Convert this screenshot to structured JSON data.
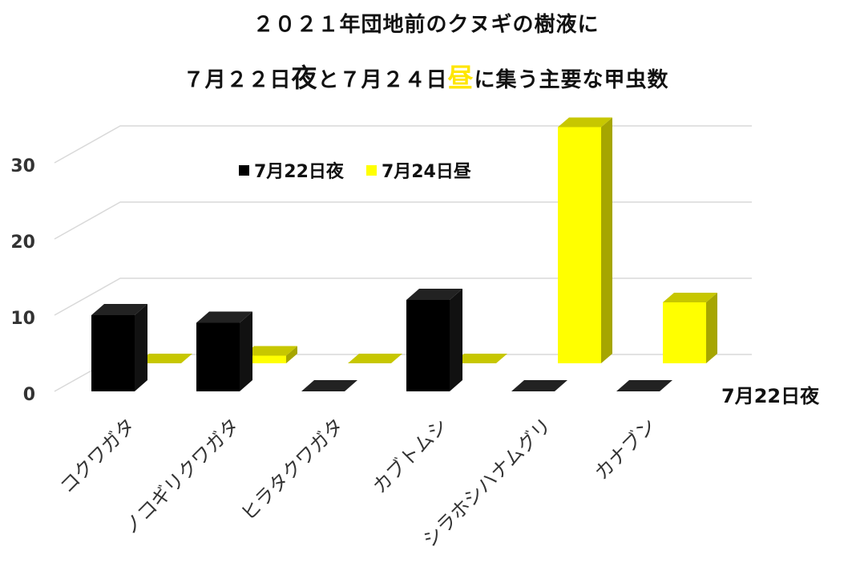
{
  "title": {
    "line1": "２０２１年団地前のクヌギの樹液に",
    "line2_prefix": "７月２２日",
    "line2_night": "夜",
    "line2_mid": "と７月２４日",
    "line2_day": "昼",
    "line2_suffix": "に集う主要な甲虫数"
  },
  "colors": {
    "night": "#000000",
    "day": "#ffff00",
    "grid": "#d9d9d9"
  },
  "chart_data": {
    "type": "bar",
    "categories": [
      "コクワガタ",
      "ノコギリクワガタ",
      "ヒラタクワガタ",
      "カブトムシ",
      "シラホシハナムグリ",
      "カナブン"
    ],
    "series": [
      {
        "name": "7月22日夜",
        "values": [
          10,
          9,
          0,
          12,
          0,
          0
        ]
      },
      {
        "name": "7月24日昼",
        "values": [
          0,
          1,
          0,
          0,
          31,
          8
        ]
      }
    ],
    "y_ticks": [
      "0",
      "10",
      "20",
      "30"
    ],
    "ylim": [
      0,
      35
    ],
    "depth_axis_label": "7月22日夜",
    "legend_position": "top-center",
    "grid": true
  }
}
